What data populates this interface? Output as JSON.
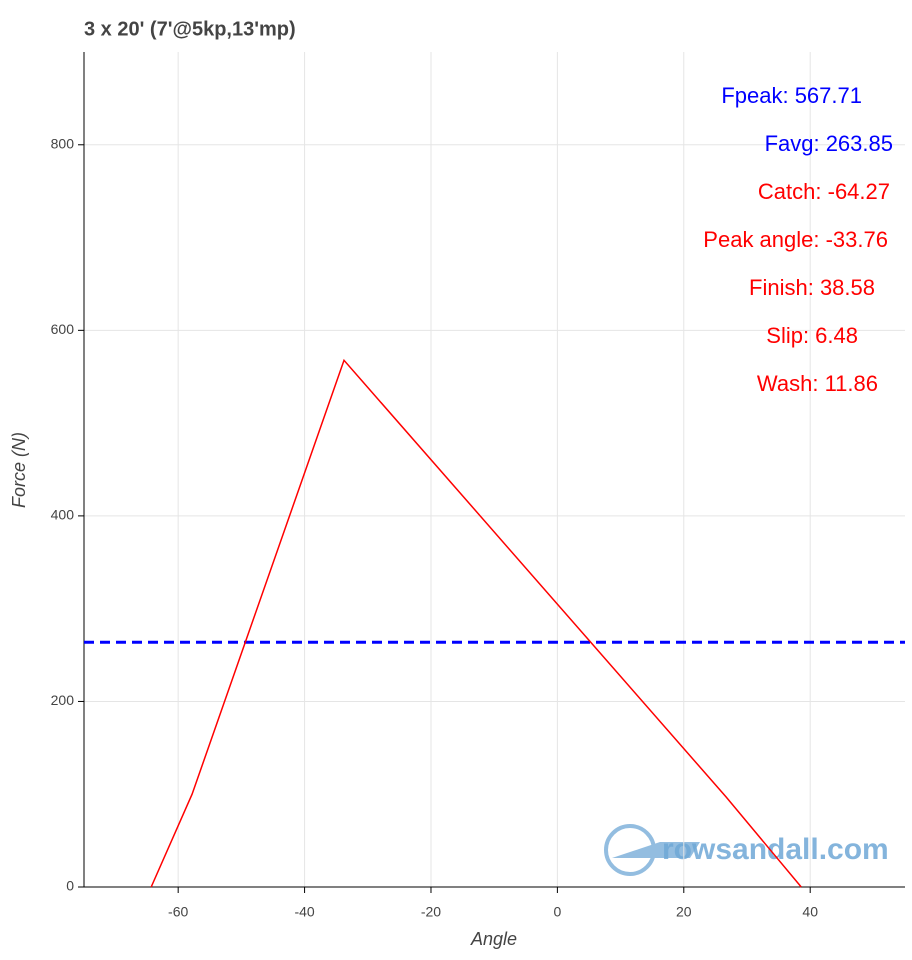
{
  "chart_data": {
    "type": "line",
    "title": "3 x 20' (7'@5kp,13'mp)",
    "x_label": "Angle",
    "y_label": "Force (N)",
    "x": [
      -64.27,
      -57.8,
      -33.76,
      26.7,
      38.58
    ],
    "series": [
      {
        "color": "#ff0000",
        "values": [
          0,
          100,
          567.71,
          97,
          0
        ]
      }
    ],
    "hline": {
      "value": 263.85,
      "color": "#0000ff",
      "style": "dashed"
    },
    "xlim": [
      -74.9,
      55
    ],
    "ylim": [
      0,
      900
    ],
    "xticks": [
      -60,
      -40,
      -20,
      0,
      20,
      40
    ],
    "yticks": [
      0,
      200,
      400,
      600,
      800
    ],
    "grid": true,
    "annotations": [
      {
        "text": "Fpeak: 567.71",
        "color": "#0000ff"
      },
      {
        "text": "Favg: 263.85",
        "color": "#0000ff"
      },
      {
        "text": "Catch: -64.27",
        "color": "#ff0000"
      },
      {
        "text": "Peak angle: -33.76",
        "color": "#ff0000"
      },
      {
        "text": "Finish: 38.58",
        "color": "#ff0000"
      },
      {
        "text": "Slip: 6.48",
        "color": "#ff0000"
      },
      {
        "text": "Wash: 11.86",
        "color": "#ff0000"
      }
    ],
    "watermark": "rowsandall.com"
  }
}
